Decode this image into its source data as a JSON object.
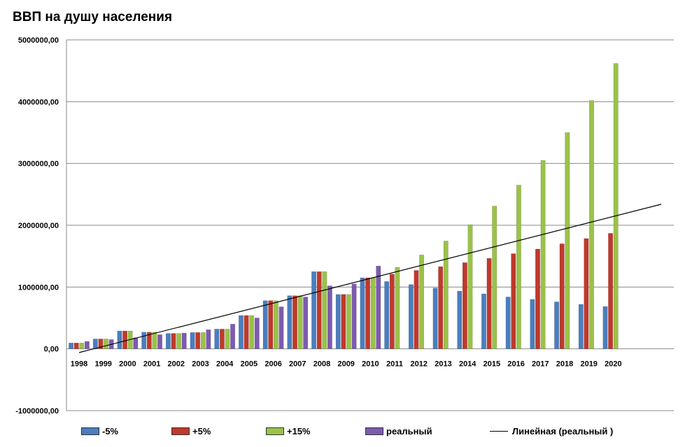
{
  "chart_data": {
    "type": "bar",
    "title": "ВВП на душу населения",
    "categories": [
      "1998",
      "1999",
      "2000",
      "2001",
      "2002",
      "2003",
      "2004",
      "2005",
      "2006",
      "2007",
      "2008",
      "2009",
      "2010",
      "2011",
      "2012",
      "2013",
      "2014",
      "2015",
      "2016",
      "2017",
      "2018",
      "2019",
      "2020"
    ],
    "series": [
      {
        "name": "-5%",
        "color": "#4a7ebf",
        "values": [
          95000,
          160000,
          290000,
          270000,
          250000,
          265000,
          320000,
          540000,
          780000,
          860000,
          1250000,
          880000,
          1150000,
          1090000,
          1040000,
          985000,
          935000,
          890000,
          840000,
          800000,
          760000,
          720000,
          685000
        ]
      },
      {
        "name": "+5%",
        "color": "#c0392b",
        "values": [
          95000,
          160000,
          290000,
          270000,
          250000,
          265000,
          320000,
          540000,
          780000,
          860000,
          1250000,
          880000,
          1150000,
          1210000,
          1270000,
          1330000,
          1395000,
          1465000,
          1540000,
          1615000,
          1700000,
          1785000,
          1870000
        ]
      },
      {
        "name": "+15%",
        "color": "#9bc248",
        "values": [
          95000,
          160000,
          290000,
          270000,
          250000,
          265000,
          320000,
          540000,
          780000,
          860000,
          1250000,
          880000,
          1150000,
          1320000,
          1520000,
          1745000,
          2010000,
          2310000,
          2650000,
          3050000,
          3500000,
          4020000,
          4620000
        ]
      },
      {
        "name": "реальный",
        "color": "#7d5bb0",
        "values": [
          120000,
          150000,
          180000,
          230000,
          255000,
          310000,
          400000,
          500000,
          680000,
          840000,
          1020000,
          1050000,
          1340000,
          null,
          null,
          null,
          null,
          null,
          null,
          null,
          null,
          null,
          null
        ]
      }
    ],
    "trendline": {
      "name": "Линейная (реальный )",
      "start": -60000,
      "end": 2340000
    },
    "ylim": [
      -1000000,
      5000000
    ],
    "y_ticks": [
      "5000000,00",
      "4000000,00",
      "3000000,00",
      "2000000,00",
      "1000000,00",
      "0,00",
      "-1000000,00"
    ],
    "grid": true,
    "legend_position": "bottom",
    "xlabel": "",
    "ylabel": ""
  }
}
